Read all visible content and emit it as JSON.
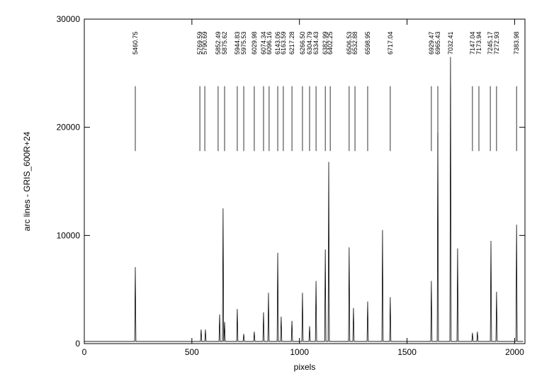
{
  "chart_data": {
    "type": "line",
    "x_label": "pixels",
    "y_label": "arc lines  -  GRIS_600R+24",
    "color": "#000000",
    "xlim": [
      0,
      2048
    ],
    "ylim": [
      0,
      30000
    ],
    "xticks": [
      0,
      500,
      1000,
      1500,
      2000
    ],
    "yticks": [
      0,
      10000,
      20000,
      30000
    ],
    "x": [
      0,
      234,
      237,
      240,
      540,
      543,
      546,
      560,
      563,
      566,
      626,
      629,
      632,
      642,
      645,
      648,
      649,
      652,
      655,
      708,
      711,
      714,
      738,
      741,
      744,
      787,
      790,
      793,
      830,
      833,
      836,
      853,
      856,
      859,
      896,
      899,
      902,
      912,
      915,
      918,
      962,
      965,
      968,
      1011,
      1014,
      1017,
      1044,
      1047,
      1050,
      1074,
      1077,
      1080,
      1117,
      1120,
      1123,
      1133,
      1136,
      1139,
      1228,
      1231,
      1234,
      1248,
      1251,
      1254,
      1314,
      1317,
      1320,
      1383,
      1386,
      1389,
      1419,
      1422,
      1425,
      1610,
      1613,
      1616,
      1640,
      1643,
      1646,
      1699,
      1702,
      1705,
      1732,
      1735,
      1738,
      1801,
      1804,
      1807,
      1824,
      1827,
      1830,
      1887,
      1890,
      1893,
      1913,
      1916,
      1919,
      2006,
      2009,
      2012,
      2040
    ],
    "values": [
      200,
      200,
      7070,
      200,
      200,
      1300,
      200,
      200,
      1300,
      200,
      200,
      2700,
      200,
      200,
      12500,
      200,
      200,
      2000,
      200,
      200,
      3200,
      200,
      200,
      900,
      200,
      200,
      1100,
      200,
      200,
      2900,
      200,
      200,
      4700,
      200,
      200,
      8400,
      200,
      200,
      2500,
      200,
      200,
      2100,
      200,
      200,
      4700,
      200,
      200,
      1600,
      200,
      200,
      5800,
      200,
      200,
      8700,
      200,
      200,
      16800,
      200,
      200,
      8900,
      200,
      200,
      3300,
      200,
      200,
      3900,
      200,
      200,
      10500,
      200,
      200,
      4300,
      200,
      200,
      5800,
      200,
      200,
      19500,
      200,
      200,
      26500,
      200,
      200,
      8800,
      200,
      200,
      1000,
      200,
      200,
      1100,
      200,
      200,
      9500,
      200,
      200,
      4800,
      200,
      200,
      11000,
      200,
      200
    ],
    "annotations": [
      {
        "text": "5460.75",
        "x": 237
      },
      {
        "text": "5769.59",
        "x": 537
      },
      {
        "text": "5790.69",
        "x": 560
      },
      {
        "text": "5852.49",
        "x": 622
      },
      {
        "text": "5875.62",
        "x": 652
      },
      {
        "text": "5944.83",
        "x": 711
      },
      {
        "text": "5975.53",
        "x": 741
      },
      {
        "text": "6029.98",
        "x": 790
      },
      {
        "text": "6074.34",
        "x": 833
      },
      {
        "text": "6096.16",
        "x": 859
      },
      {
        "text": "6143.06",
        "x": 899
      },
      {
        "text": "6163.59",
        "x": 925
      },
      {
        "text": "6217.28",
        "x": 965
      },
      {
        "text": "6266.50",
        "x": 1014
      },
      {
        "text": "6304.79",
        "x": 1047
      },
      {
        "text": "6334.43",
        "x": 1077
      },
      {
        "text": "6382.99",
        "x": 1120
      },
      {
        "text": "6402.25",
        "x": 1143
      },
      {
        "text": "6506.53",
        "x": 1231
      },
      {
        "text": "6532.88",
        "x": 1258
      },
      {
        "text": "6598.95",
        "x": 1317
      },
      {
        "text": "6717.04",
        "x": 1422
      },
      {
        "text": "6929.47",
        "x": 1613
      },
      {
        "text": "6965.43",
        "x": 1643
      },
      {
        "text": "7032.41",
        "x": 1702
      },
      {
        "text": "7147.04",
        "x": 1804
      },
      {
        "text": "7173.94",
        "x": 1834
      },
      {
        "text": "7245.17",
        "x": 1887
      },
      {
        "text": "7272.93",
        "x": 1916
      },
      {
        "text": "7383.98",
        "x": 2009
      }
    ]
  }
}
